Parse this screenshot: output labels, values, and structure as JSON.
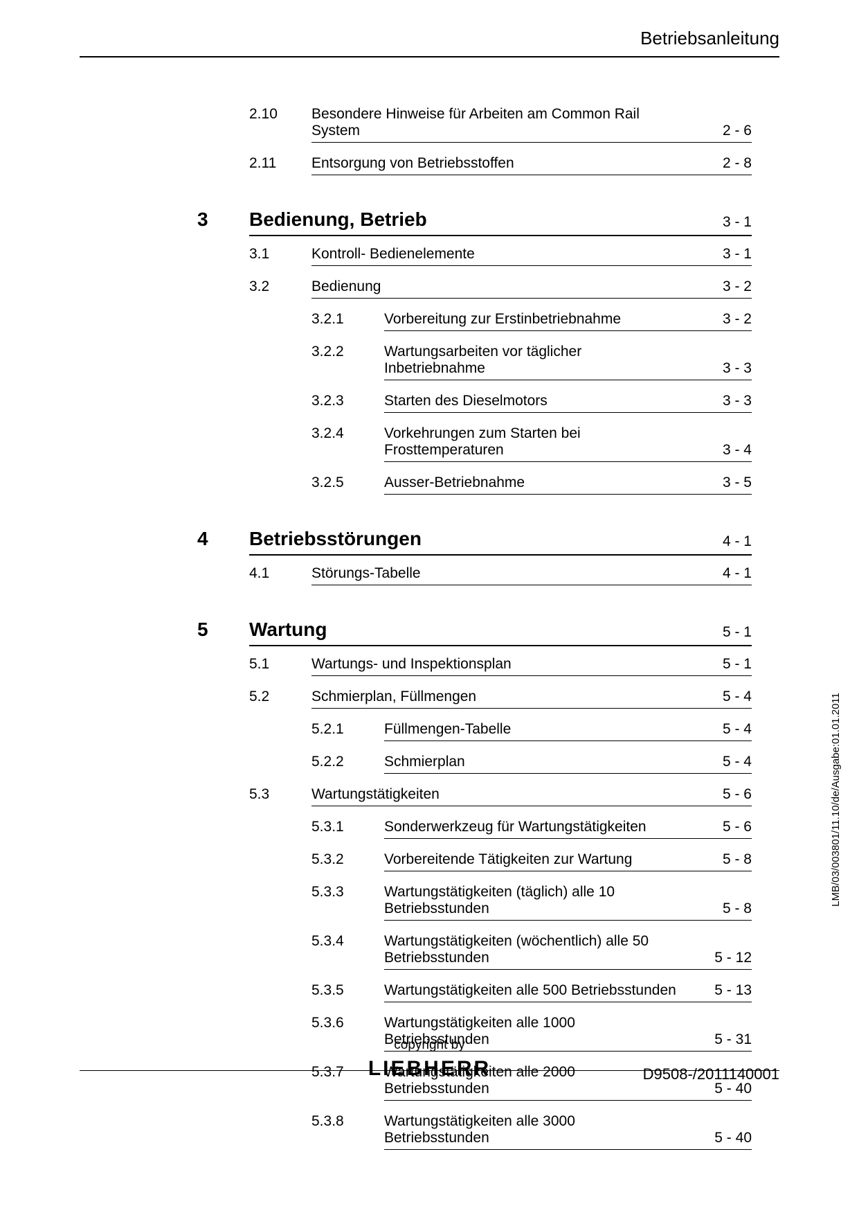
{
  "header": "Betriebsanleitung",
  "side_text": "LMB/03/003801/11.10/de/Ausgabe:01.01.2011",
  "footer": {
    "copyright": "copyright by",
    "logo": "LIEBHERR",
    "doc_id": "D9508-/2011140001"
  },
  "toc": [
    {
      "level": 1,
      "num": "2.10",
      "title": "Besondere Hinweise für Arbeiten am Common Rail System",
      "page": "2 - 6"
    },
    {
      "level": 1,
      "num": "2.11",
      "title": "Entsorgung von Betriebsstoffen",
      "page": "2 - 8"
    },
    {
      "level": 0,
      "num": "3",
      "title": "Bedienung, Betrieb",
      "page": "3 - 1"
    },
    {
      "level": 1,
      "num": "3.1",
      "title": "Kontroll- Bedienelemente",
      "page": "3 - 1"
    },
    {
      "level": 1,
      "num": "3.2",
      "title": "Bedienung",
      "page": "3 - 2"
    },
    {
      "level": 2,
      "num": "3.2.1",
      "title": "Vorbereitung zur Erstinbetriebnahme",
      "page": "3 - 2"
    },
    {
      "level": 2,
      "num": "3.2.2",
      "title": "Wartungsarbeiten vor täglicher Inbetriebnahme",
      "page": "3 - 3"
    },
    {
      "level": 2,
      "num": "3.2.3",
      "title": "Starten des Dieselmotors",
      "page": "3 - 3"
    },
    {
      "level": 2,
      "num": "3.2.4",
      "title": "Vorkehrungen zum Starten bei Frosttemperaturen",
      "page": "3 - 4"
    },
    {
      "level": 2,
      "num": "3.2.5",
      "title": "Ausser-Betriebnahme",
      "page": "3 - 5"
    },
    {
      "level": 0,
      "num": "4",
      "title": "Betriebsstörungen",
      "page": "4 - 1"
    },
    {
      "level": 1,
      "num": "4.1",
      "title": "Störungs-Tabelle",
      "page": "4 - 1"
    },
    {
      "level": 0,
      "num": "5",
      "title": "Wartung",
      "page": "5 - 1"
    },
    {
      "level": 1,
      "num": "5.1",
      "title": "Wartungs- und Inspektionsplan",
      "page": "5 - 1"
    },
    {
      "level": 1,
      "num": "5.2",
      "title": "Schmierplan, Füllmengen",
      "page": "5 - 4"
    },
    {
      "level": 2,
      "num": "5.2.1",
      "title": "Füllmengen-Tabelle",
      "page": "5 - 4"
    },
    {
      "level": 2,
      "num": "5.2.2",
      "title": "Schmierplan",
      "page": "5 - 4"
    },
    {
      "level": 1,
      "num": "5.3",
      "title": "Wartungstätigkeiten",
      "page": "5 - 6"
    },
    {
      "level": 2,
      "num": "5.3.1",
      "title": "Sonderwerkzeug für Wartungstätigkeiten",
      "page": "5 - 6"
    },
    {
      "level": 2,
      "num": "5.3.2",
      "title": "Vorbereitende Tätigkeiten zur Wartung",
      "page": "5 - 8"
    },
    {
      "level": 2,
      "num": "5.3.3",
      "title": "Wartungstätigkeiten (täglich) alle 10 Betriebsstunden",
      "page": "5 - 8"
    },
    {
      "level": 2,
      "num": "5.3.4",
      "title": "Wartungstätigkeiten (wöchentlich) alle 50 Betriebsstunden",
      "page": "5 - 12"
    },
    {
      "level": 2,
      "num": "5.3.5",
      "title": "Wartungstätigkeiten alle 500 Betriebsstunden",
      "page": "5 - 13"
    },
    {
      "level": 2,
      "num": "5.3.6",
      "title": "Wartungstätigkeiten alle 1000 Betriebsstunden",
      "page": "5 - 31"
    },
    {
      "level": 2,
      "num": "5.3.7",
      "title": "Wartungstätigkeiten alle 2000 Betriebsstunden",
      "page": "5 - 40"
    },
    {
      "level": 2,
      "num": "5.3.8",
      "title": "Wartungstätigkeiten alle 3000 Betriebsstunden",
      "page": "5 - 40"
    }
  ]
}
